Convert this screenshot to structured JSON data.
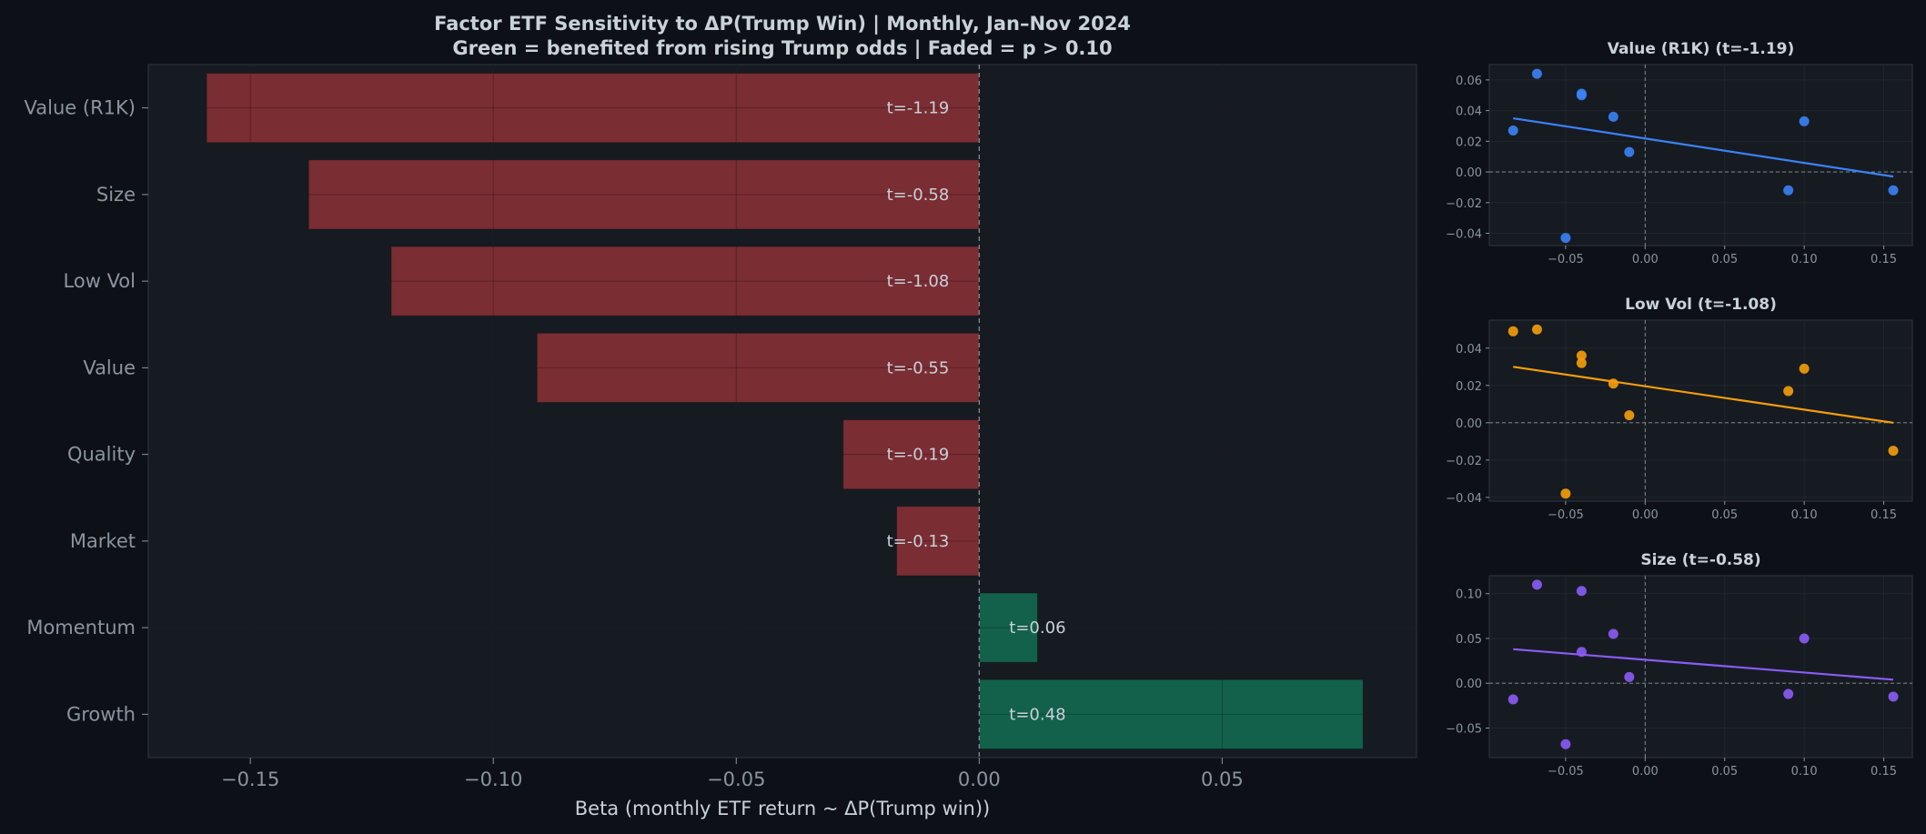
{
  "title_line1": "Factor ETF Sensitivity to ΔP(Trump Win)  |  Monthly, Jan–Nov 2024",
  "title_line2": "Green = benefited from rising Trump odds  |  Faded = p > 0.10",
  "colors": {
    "background": "#0d1117",
    "panel": "#161b22",
    "negative_bar": "#7a2d33",
    "positive_bar": "#13614b",
    "text": "#c9d1d9",
    "muted_text": "#8b949e"
  },
  "chart_data": [
    {
      "type": "bar",
      "orientation": "horizontal",
      "categories": [
        "Value (R1K)",
        "Size",
        "Low Vol",
        "Value",
        "Quality",
        "Market",
        "Momentum",
        "Growth"
      ],
      "values": [
        -0.159,
        -0.138,
        -0.121,
        -0.091,
        -0.028,
        -0.017,
        0.012,
        0.079
      ],
      "bar_labels": [
        "t=-1.19",
        "t=-0.58",
        "t=-1.08",
        "t=-0.55",
        "t=-0.19",
        "t=-0.13",
        "t=0.06",
        "t=0.48"
      ],
      "xlabel": "Beta  (monthly ETF return ~ ΔP(Trump win))",
      "xlim": [
        -0.171,
        0.09
      ],
      "xticks": [
        -0.15,
        -0.1,
        -0.05,
        0.0,
        0.05
      ],
      "xtick_labels": [
        "−0.15",
        "−0.10",
        "−0.05",
        "0.00",
        "0.05"
      ],
      "grid": true
    },
    {
      "type": "scatter",
      "title": "Value (R1K)  (t=-1.19)",
      "color": "#3b82f6",
      "x": [
        -0.083,
        -0.068,
        -0.04,
        -0.04,
        -0.02,
        -0.01,
        0.09,
        0.1,
        0.156,
        -0.05
      ],
      "y": [
        0.027,
        0.064,
        0.05,
        0.051,
        0.036,
        0.013,
        -0.012,
        0.033,
        -0.012,
        -0.043
      ],
      "fit": {
        "x": [
          -0.083,
          0.156
        ],
        "y": [
          0.035,
          -0.003
        ]
      },
      "xlim": [
        -0.098,
        0.168
      ],
      "ylim": [
        -0.048,
        0.07
      ],
      "xticks": [
        -0.05,
        0.0,
        0.05,
        0.1,
        0.15
      ],
      "xtick_labels": [
        "−0.05",
        "0.00",
        "0.05",
        "0.10",
        "0.15"
      ],
      "yticks": [
        -0.04,
        -0.02,
        0.0,
        0.02,
        0.04,
        0.06
      ],
      "ytick_labels": [
        "−0.04",
        "−0.02",
        "0.00",
        "0.02",
        "0.04",
        "0.06"
      ]
    },
    {
      "type": "scatter",
      "title": "Low Vol  (t=-1.08)",
      "color": "#f59e0b",
      "x": [
        -0.083,
        -0.068,
        -0.04,
        -0.04,
        -0.02,
        -0.01,
        0.09,
        0.1,
        0.156,
        -0.05
      ],
      "y": [
        0.049,
        0.05,
        0.036,
        0.032,
        0.021,
        0.004,
        0.017,
        0.029,
        -0.015,
        -0.038
      ],
      "fit": {
        "x": [
          -0.083,
          0.156
        ],
        "y": [
          0.03,
          0.0
        ]
      },
      "xlim": [
        -0.098,
        0.168
      ],
      "ylim": [
        -0.042,
        0.055
      ],
      "xticks": [
        -0.05,
        0.0,
        0.05,
        0.1,
        0.15
      ],
      "xtick_labels": [
        "−0.05",
        "0.00",
        "0.05",
        "0.10",
        "0.15"
      ],
      "yticks": [
        -0.04,
        -0.02,
        0.0,
        0.02,
        0.04
      ],
      "ytick_labels": [
        "−0.04",
        "−0.02",
        "0.00",
        "0.02",
        "0.04"
      ]
    },
    {
      "type": "scatter",
      "title": "Size  (t=-0.58)",
      "color": "#8b5cf6",
      "x": [
        -0.083,
        -0.068,
        -0.04,
        -0.04,
        -0.02,
        -0.01,
        0.09,
        0.1,
        0.156,
        -0.05
      ],
      "y": [
        -0.018,
        0.11,
        0.103,
        0.035,
        0.055,
        0.007,
        -0.012,
        0.05,
        -0.015,
        -0.068
      ],
      "fit": {
        "x": [
          -0.083,
          0.156
        ],
        "y": [
          0.038,
          0.004
        ]
      },
      "xlim": [
        -0.098,
        0.168
      ],
      "ylim": [
        -0.083,
        0.12
      ],
      "xticks": [
        -0.05,
        0.0,
        0.05,
        0.1,
        0.15
      ],
      "xtick_labels": [
        "−0.05",
        "0.00",
        "0.05",
        "0.10",
        "0.15"
      ],
      "yticks": [
        -0.05,
        0.0,
        0.05,
        0.1
      ],
      "ytick_labels": [
        "−0.05",
        "0.00",
        "0.05",
        "0.10"
      ]
    }
  ]
}
